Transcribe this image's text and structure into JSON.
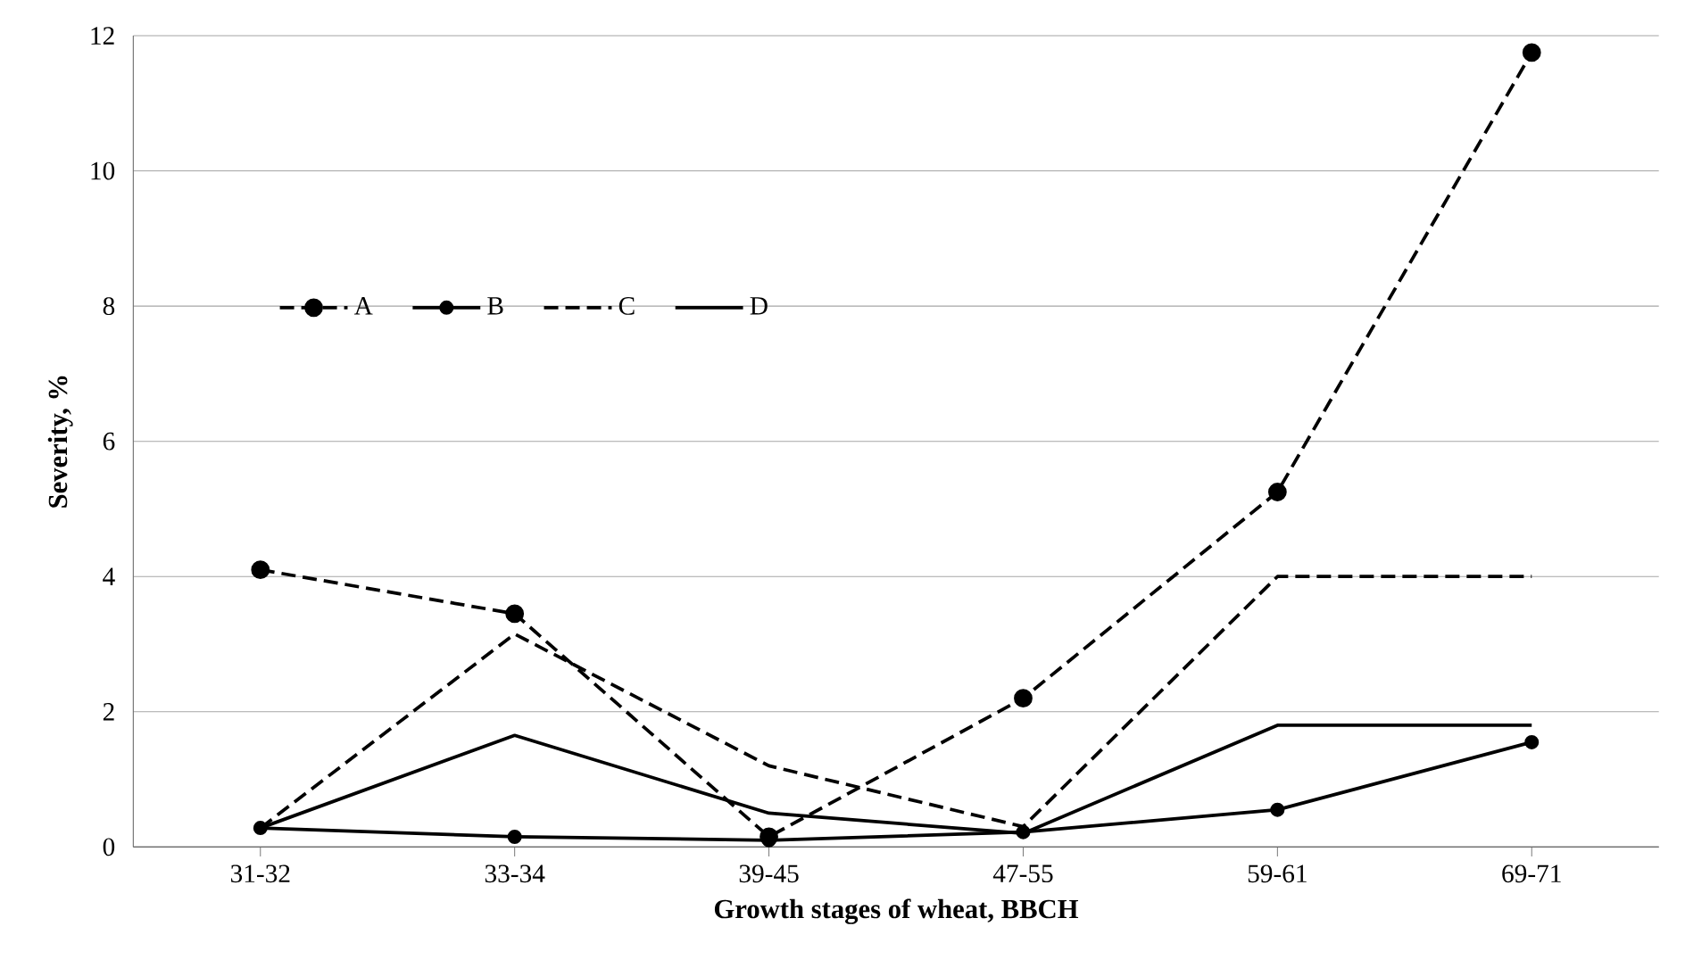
{
  "chart_data": {
    "type": "line",
    "xlabel": "Growth stages of wheat, BBCH",
    "ylabel": "Severity, %",
    "categories": [
      "31-32",
      "33-34",
      "39-45",
      "47-55",
      "59-61",
      "69-71"
    ],
    "series": [
      {
        "name": "A",
        "color": "#000000",
        "marker": "circle",
        "line_style": "dashed",
        "values": [
          4.1,
          3.45,
          0.15,
          2.2,
          5.25,
          11.75
        ]
      },
      {
        "name": "B",
        "color": "#000000",
        "marker": "circle",
        "line_style": "solid",
        "values": [
          0.28,
          0.15,
          0.1,
          0.22,
          0.55,
          1.55
        ]
      },
      {
        "name": "C",
        "color": "#000000",
        "marker": "none",
        "line_style": "dashed",
        "values": [
          0.28,
          3.15,
          1.2,
          0.3,
          4.0,
          4.0
        ]
      },
      {
        "name": "D",
        "color": "#000000",
        "marker": "none",
        "line_style": "solid",
        "values": [
          0.28,
          1.65,
          0.5,
          0.2,
          1.8,
          1.8
        ]
      }
    ],
    "ylim": [
      0,
      12
    ],
    "yticks": [
      0,
      2,
      4,
      6,
      8,
      10,
      12
    ],
    "grid": "y",
    "legend": "top left"
  }
}
